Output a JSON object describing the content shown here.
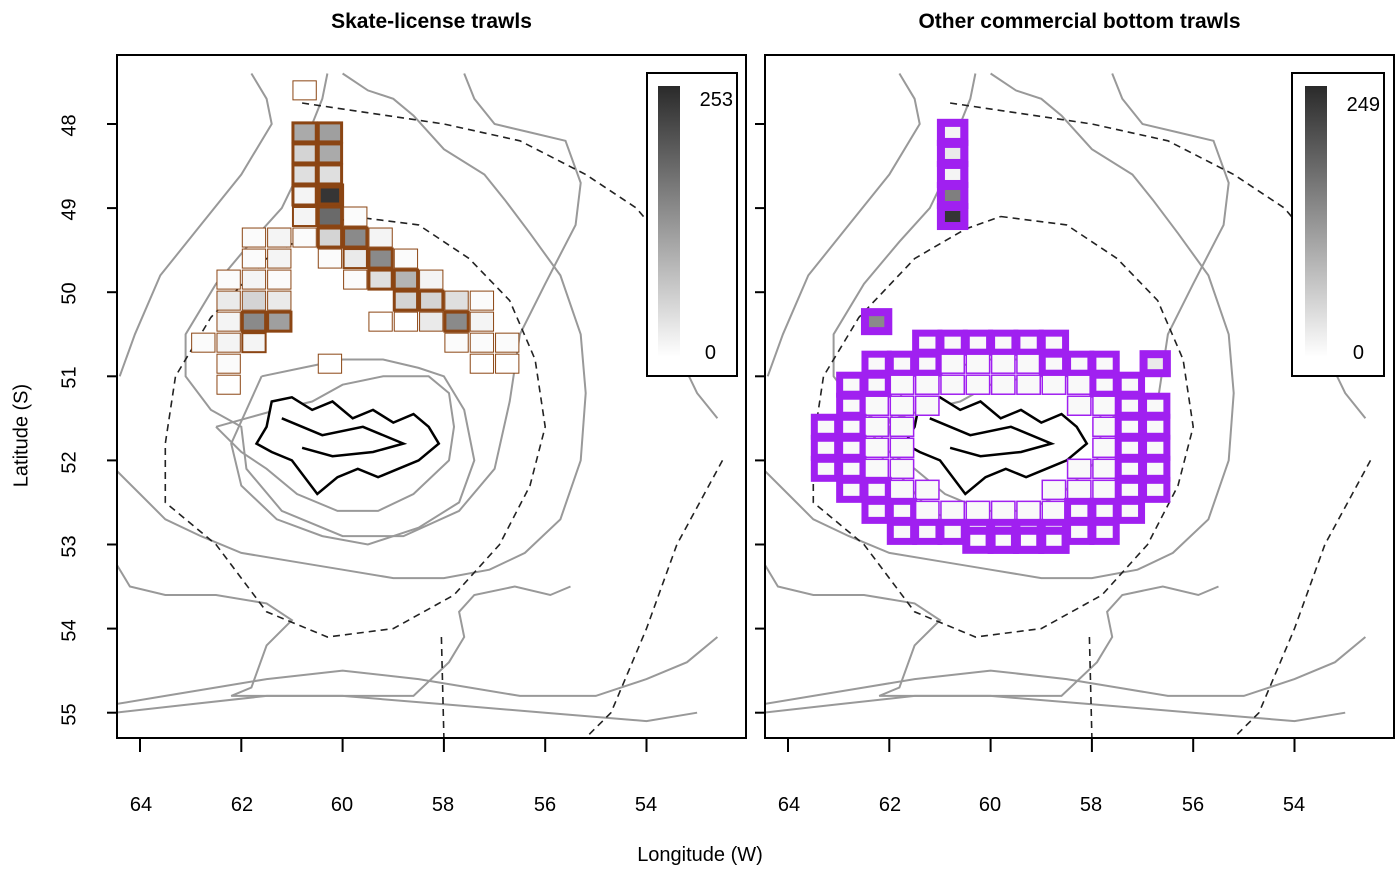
{
  "panels": [
    {
      "title": "Skate-license trawls",
      "legend_max": "253",
      "legend_min": "0",
      "outline_color": "#8B4513"
    },
    {
      "title": "Other commercial bottom trawls",
      "legend_max": "249",
      "legend_min": "0",
      "outline_color": "#A020F0"
    }
  ],
  "axes": {
    "ylabel": "Latitude (S)",
    "xlabel": "Longitude (W)",
    "yticks": [
      "48",
      "49",
      "50",
      "51",
      "52",
      "53",
      "54",
      "55"
    ],
    "xticks": [
      "64",
      "62",
      "60",
      "58",
      "56",
      "54"
    ]
  },
  "map_data": {
    "lon_range": [
      52.3,
      64.5
    ],
    "lat_range": [
      47.4,
      55.3
    ],
    "grid_cell_deg": {
      "lon": 0.5,
      "lat": 0.25
    },
    "skate_cells": [
      [
        60.75,
        47.6,
        0,
        1
      ],
      [
        60.75,
        48.1,
        0.4,
        3
      ],
      [
        60.25,
        48.1,
        0.45,
        3
      ],
      [
        60.75,
        48.35,
        0.2,
        3
      ],
      [
        60.25,
        48.35,
        0.4,
        3
      ],
      [
        60.75,
        48.6,
        0.15,
        3
      ],
      [
        60.25,
        48.6,
        0.15,
        3
      ],
      [
        60.25,
        48.85,
        0.95,
        5
      ],
      [
        60.75,
        48.85,
        0.05,
        3
      ],
      [
        60.25,
        49.1,
        0.7,
        3
      ],
      [
        60.75,
        49.1,
        0.05,
        2
      ],
      [
        59.75,
        49.1,
        0.02,
        1
      ],
      [
        61.75,
        49.35,
        0.02,
        1
      ],
      [
        61.25,
        49.35,
        0.05,
        1
      ],
      [
        60.75,
        49.35,
        0.02,
        1
      ],
      [
        60.25,
        49.35,
        0.2,
        3
      ],
      [
        59.75,
        49.35,
        0.55,
        3
      ],
      [
        59.25,
        49.35,
        0.05,
        1
      ],
      [
        61.75,
        49.6,
        0.02,
        1
      ],
      [
        61.25,
        49.6,
        0.05,
        1
      ],
      [
        60.25,
        49.6,
        0.02,
        1
      ],
      [
        59.75,
        49.6,
        0.1,
        2
      ],
      [
        59.25,
        49.6,
        0.55,
        3
      ],
      [
        58.75,
        49.6,
        0.02,
        1
      ],
      [
        62.25,
        49.85,
        0.02,
        1
      ],
      [
        61.75,
        49.85,
        0.05,
        1
      ],
      [
        61.25,
        49.85,
        0.02,
        1
      ],
      [
        59.75,
        49.85,
        0.02,
        1
      ],
      [
        59.25,
        49.85,
        0.15,
        3
      ],
      [
        58.75,
        49.85,
        0.35,
        3
      ],
      [
        58.25,
        49.85,
        0.05,
        1
      ],
      [
        62.25,
        50.1,
        0.1,
        1
      ],
      [
        61.75,
        50.1,
        0.2,
        1
      ],
      [
        61.25,
        50.1,
        0.1,
        1
      ],
      [
        58.75,
        50.1,
        0.2,
        3
      ],
      [
        58.25,
        50.1,
        0.2,
        3
      ],
      [
        57.75,
        50.1,
        0.15,
        1
      ],
      [
        57.25,
        50.1,
        0.02,
        1
      ],
      [
        62.25,
        50.35,
        0.05,
        1
      ],
      [
        61.75,
        50.35,
        0.55,
        3
      ],
      [
        61.25,
        50.35,
        0.45,
        3
      ],
      [
        59.25,
        50.35,
        0,
        1
      ],
      [
        58.75,
        50.35,
        0,
        1
      ],
      [
        58.25,
        50.35,
        0.1,
        1
      ],
      [
        57.75,
        50.35,
        0.55,
        3
      ],
      [
        57.25,
        50.35,
        0.05,
        1
      ],
      [
        62.75,
        50.6,
        0.02,
        1
      ],
      [
        62.25,
        50.6,
        0.05,
        1
      ],
      [
        61.75,
        50.6,
        0.05,
        2
      ],
      [
        57.75,
        50.6,
        0.02,
        1
      ],
      [
        57.25,
        50.6,
        0.02,
        1
      ],
      [
        56.75,
        50.6,
        0.02,
        1
      ],
      [
        62.25,
        50.85,
        0.02,
        1
      ],
      [
        60.25,
        50.85,
        0,
        1
      ],
      [
        57.25,
        50.85,
        0,
        1
      ],
      [
        56.75,
        50.85,
        0,
        1
      ],
      [
        62.25,
        51.1,
        0,
        1
      ]
    ],
    "other_cells_thick": [
      [
        60.75,
        48.1,
        0.05
      ],
      [
        60.75,
        48.35,
        0.1
      ],
      [
        60.75,
        48.6,
        0.05
      ],
      [
        60.75,
        48.85,
        0.6
      ],
      [
        60.75,
        49.1,
        0.95
      ],
      [
        62.25,
        50.35,
        0.55
      ],
      [
        56.75,
        50.85,
        0.1
      ],
      [
        58.75,
        52.95,
        0.02
      ],
      [
        59.25,
        52.95,
        0.02
      ],
      [
        59.75,
        52.95,
        0.02
      ]
    ]
  }
}
